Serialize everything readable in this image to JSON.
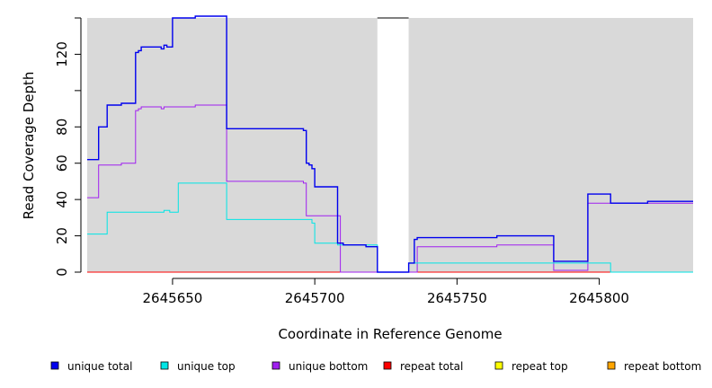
{
  "chart_data": {
    "type": "line",
    "title": "",
    "xlabel": "Coordinate in Reference Genome",
    "ylabel": "Read Coverage Depth",
    "xlim": [
      2645620,
      2645833
    ],
    "ylim": [
      0,
      140
    ],
    "x_ticks": [
      2645650,
      2645700,
      2645750,
      2645800
    ],
    "x_tick_labels": [
      "2645650",
      "2645700",
      "2645750",
      "2645800"
    ],
    "y_ticks": [
      0,
      20,
      40,
      60,
      80,
      100,
      120,
      140
    ],
    "y_tick_labels": [
      "0",
      "20",
      "40",
      "60",
      "80",
      "",
      "120",
      ""
    ],
    "gap_region": [
      2645722,
      2645733
    ],
    "background_color": "#d9d9d9",
    "legend_placement": "bottom",
    "series": [
      {
        "name": "unique total",
        "color": "#0000ee",
        "step_x": [
          2645620,
          2645624,
          2645627,
          2645632,
          2645637,
          2645638,
          2645639,
          2645646,
          2645647,
          2645648,
          2645650,
          2645652,
          2645658,
          2645669,
          2645696,
          2645697,
          2645698,
          2645699,
          2645700,
          2645708,
          2645710,
          2645718,
          2645722,
          2645733,
          2645735,
          2645736,
          2645748,
          2645764,
          2645784,
          2645796,
          2645804,
          2645817,
          2645833
        ],
        "step_y": [
          62,
          80,
          92,
          93,
          121,
          122,
          124,
          123,
          125,
          124,
          140,
          140,
          141,
          79,
          78,
          60,
          59,
          57,
          47,
          16,
          15,
          14,
          0,
          5,
          18,
          19,
          19,
          20,
          6,
          43,
          38,
          39,
          39
        ]
      },
      {
        "name": "unique top",
        "color": "#00e5e5",
        "step_x": [
          2645620,
          2645627,
          2645647,
          2645649,
          2645652,
          2645669,
          2645699,
          2645700,
          2645708,
          2645722,
          2645733,
          2645735,
          2645784,
          2645804,
          2645833
        ],
        "step_y": [
          21,
          33,
          34,
          33,
          49,
          29,
          27,
          16,
          15,
          0,
          5,
          5,
          5,
          0,
          0
        ]
      },
      {
        "name": "unique bottom",
        "color": "#a020f0",
        "step_x": [
          2645620,
          2645624,
          2645632,
          2645637,
          2645638,
          2645639,
          2645646,
          2645647,
          2645658,
          2645669,
          2645696,
          2645697,
          2645709,
          2645722,
          2645733,
          2645736,
          2645748,
          2645764,
          2645784,
          2645796,
          2645833
        ],
        "step_y": [
          41,
          59,
          60,
          89,
          90,
          91,
          90,
          91,
          92,
          50,
          49,
          31,
          0,
          0,
          0,
          14,
          14,
          15,
          1,
          38,
          38
        ]
      },
      {
        "name": "repeat total",
        "color": "#ff0000",
        "step_x": [
          2645620,
          2645833
        ],
        "step_y": [
          0,
          0
        ]
      },
      {
        "name": "repeat top",
        "color": "#ffff00",
        "step_x": [
          2645620,
          2645833
        ],
        "step_y": [
          0,
          0
        ]
      },
      {
        "name": "repeat bottom",
        "color": "#ffa500",
        "step_x": [
          2645620,
          2645833
        ],
        "step_y": [
          0,
          0
        ]
      }
    ]
  }
}
